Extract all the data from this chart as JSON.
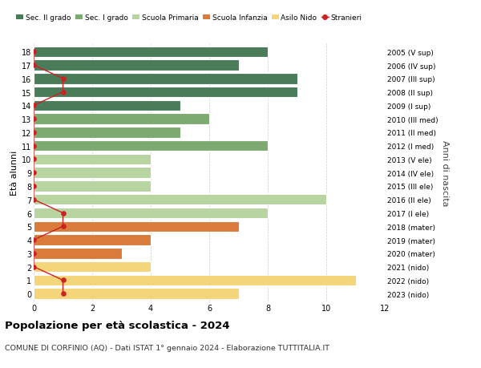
{
  "ages": [
    18,
    17,
    16,
    15,
    14,
    13,
    12,
    11,
    10,
    9,
    8,
    7,
    6,
    5,
    4,
    3,
    2,
    1,
    0
  ],
  "years": [
    "2005 (V sup)",
    "2006 (IV sup)",
    "2007 (III sup)",
    "2008 (II sup)",
    "2009 (I sup)",
    "2010 (III med)",
    "2011 (II med)",
    "2012 (I med)",
    "2013 (V ele)",
    "2014 (IV ele)",
    "2015 (III ele)",
    "2016 (II ele)",
    "2017 (I ele)",
    "2018 (mater)",
    "2019 (mater)",
    "2020 (mater)",
    "2021 (nido)",
    "2022 (nido)",
    "2023 (nido)"
  ],
  "bar_values": [
    8,
    7,
    9,
    9,
    5,
    6,
    5,
    8,
    4,
    4,
    4,
    10,
    8,
    7,
    4,
    3,
    4,
    11,
    7
  ],
  "bar_colors": [
    "#4a7c59",
    "#4a7c59",
    "#4a7c59",
    "#4a7c59",
    "#4a7c59",
    "#7daa70",
    "#7daa70",
    "#7daa70",
    "#b8d4a0",
    "#b8d4a0",
    "#b8d4a0",
    "#b8d4a0",
    "#b8d4a0",
    "#d97b3a",
    "#d97b3a",
    "#d97b3a",
    "#f5d57a",
    "#f5d57a",
    "#f5d57a"
  ],
  "stranieri_x": [
    0,
    0,
    1,
    1,
    0,
    0,
    0,
    0,
    0,
    0,
    0,
    0,
    1,
    1,
    0,
    0,
    0,
    1,
    1
  ],
  "legend_labels": [
    "Sec. II grado",
    "Sec. I grado",
    "Scuola Primaria",
    "Scuola Infanzia",
    "Asilo Nido",
    "Stranieri"
  ],
  "legend_colors": [
    "#4a7c59",
    "#7daa70",
    "#b8d4a0",
    "#d97b3a",
    "#f5d57a",
    "#cc2222"
  ],
  "title": "Popolazione per età scolastica - 2024",
  "subtitle": "COMUNE DI CORFINIO (AQ) - Dati ISTAT 1° gennaio 2024 - Elaborazione TUTTITALIA.IT",
  "ylabel_left": "Età alunni",
  "ylabel_right": "Anni di nascita",
  "xlim": [
    0,
    12
  ],
  "bar_height": 0.8,
  "bg_color": "#ffffff",
  "grid_color": "#cccccc"
}
